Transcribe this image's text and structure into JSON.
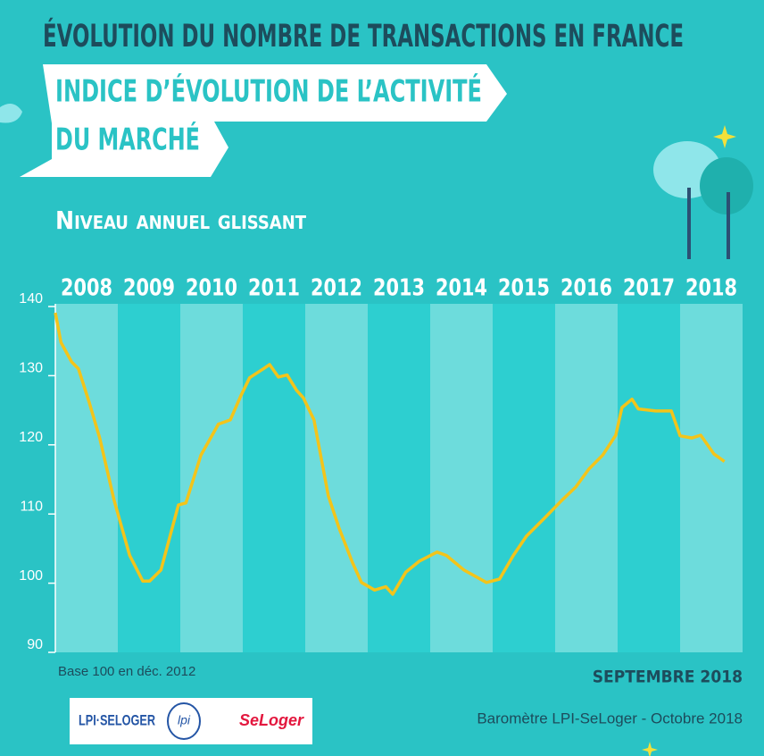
{
  "header": {
    "title": "ÉVOLUTION DU NOMBRE DE TRANSACTIONS EN FRANCE",
    "ribbon_line1": "INDICE D’ÉVOLUTION DE L’ACTIVITÉ",
    "ribbon_line2": "DU MARCHÉ"
  },
  "chart_data": {
    "type": "line",
    "subtitle": "Niveau annuel glissant",
    "x": [
      2008.0,
      2008.09,
      2008.26,
      2008.37,
      2008.54,
      2008.71,
      2008.94,
      2009.19,
      2009.4,
      2009.51,
      2009.69,
      2009.97,
      2010.09,
      2010.33,
      2010.61,
      2010.8,
      2010.97,
      2011.11,
      2011.33,
      2011.43,
      2011.57,
      2011.71,
      2011.86,
      2011.97,
      2012.14,
      2012.37,
      2012.54,
      2012.76,
      2012.9,
      2013.11,
      2013.29,
      2013.4,
      2013.61,
      2013.83,
      2014.11,
      2014.26,
      2014.54,
      2014.9,
      2015.11,
      2015.33,
      2015.54,
      2015.83,
      2016.11,
      2016.33,
      2016.54,
      2016.76,
      2016.97,
      2017.07,
      2017.23,
      2017.33,
      2017.61,
      2017.86,
      2018.0,
      2018.19,
      2018.33,
      2018.54,
      2018.71
    ],
    "series": [
      {
        "color": "#f3c41a",
        "values": [
          139.1,
          134.8,
          132,
          131,
          126.2,
          121,
          112,
          104,
          100.3,
          100.3,
          101.9,
          111.3,
          111.6,
          118.5,
          123,
          123.6,
          127.1,
          129.7,
          131,
          131.6,
          129.8,
          130.1,
          127.9,
          126.8,
          123.6,
          112.6,
          108,
          102.9,
          100.1,
          99,
          99.5,
          98.4,
          101.6,
          103.2,
          104.5,
          104,
          101.9,
          100.1,
          100.6,
          104,
          106.8,
          109.4,
          112,
          113.9,
          116.5,
          118.5,
          121.4,
          125.4,
          126.6,
          125.2,
          124.9,
          124.9,
          121.3,
          121,
          121.4,
          118.7,
          117.6
        ]
      }
    ],
    "xlim": [
      2008,
      2019
    ],
    "xticks": [
      2008,
      2009,
      2010,
      2011,
      2012,
      2013,
      2014,
      2015,
      2016,
      2017,
      2018
    ],
    "ylim": [
      90,
      140
    ],
    "yticks": [
      90,
      100,
      110,
      120,
      130,
      140
    ],
    "band_colors": [
      "#6ddcdc",
      "#2dcfd0"
    ],
    "note": "Base 100 en déc. 2012",
    "date": "SEPTEMBRE 2018"
  },
  "footer": {
    "source": "Baromètre LPI-SeLoger - Octobre 2018",
    "logo1": "LPI·SELOGER",
    "logo2": "lpi",
    "logo3": "SeLoger"
  }
}
